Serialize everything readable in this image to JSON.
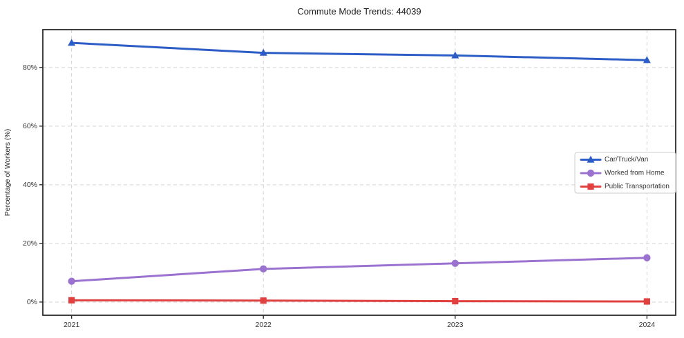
{
  "window": {
    "title": "Commute Mode Trends: 44039"
  },
  "chart_data": {
    "type": "line",
    "title": "Commute Mode Trends: 44039",
    "xlabel": "",
    "ylabel": "Percentage of Workers (%)",
    "categories": [
      "2021",
      "2022",
      "2023",
      "2024"
    ],
    "series": [
      {
        "name": "Car/Truck/Van",
        "marker": "triangle",
        "color": "#2c5cc5",
        "values": [
          88.4,
          85.0,
          84.1,
          82.5
        ]
      },
      {
        "name": "Worked from Home",
        "marker": "circle",
        "color": "#9b72d0",
        "values": [
          7.1,
          11.3,
          13.2,
          15.1
        ]
      },
      {
        "name": "Public Transportation",
        "marker": "square",
        "color": "#e04040",
        "values": [
          0.6,
          0.5,
          0.3,
          0.2
        ]
      }
    ],
    "yticks": [
      0,
      20,
      40,
      60,
      80
    ],
    "ytick_labels": [
      "0%",
      "20%",
      "40%",
      "60%",
      "80%"
    ],
    "ylim": [
      -4.5,
      92.9
    ],
    "grid": true,
    "grid_style": "dashed",
    "grid_color": "#d3d3d3",
    "spine_color": "#2b2b2b",
    "text_color": "#333333",
    "legend_position": "center right",
    "legend_labels": [
      "Car/Truck/Van",
      "Worked from Home",
      "Public Transportation"
    ]
  }
}
